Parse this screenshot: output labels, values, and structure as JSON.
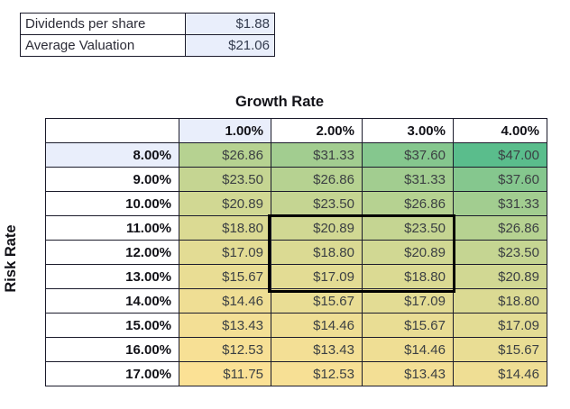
{
  "summary_table": {
    "rows": [
      {
        "label": "Dividends per share",
        "value": "$1.88"
      },
      {
        "label": "Average Valuation",
        "value": "$21.06"
      }
    ]
  },
  "sensitivity": {
    "title": "Growth Rate",
    "row_axis_label": "Risk Rate",
    "corner_label": "",
    "col_headers": [
      "1.00%",
      "2.00%",
      "3.00%",
      "4.00%"
    ],
    "highlighted_col_header": "1.00%",
    "highlighted_row_label": "8.00%",
    "selection_block": {
      "rows": [
        "11.00%",
        "12.00%",
        "13.00%"
      ],
      "cols": [
        "2.00%",
        "3.00%"
      ]
    },
    "rows": [
      {
        "label": "8.00%",
        "cells": [
          {
            "text": "$26.86",
            "color": "#b6d291"
          },
          {
            "text": "$31.33",
            "color": "#a2cd90"
          },
          {
            "text": "$37.60",
            "color": "#85c78e"
          },
          {
            "text": "$47.00",
            "color": "#5abd8c"
          }
        ]
      },
      {
        "label": "9.00%",
        "cells": [
          {
            "text": "$23.50",
            "color": "#c5d592"
          },
          {
            "text": "$26.86",
            "color": "#b6d291"
          },
          {
            "text": "$31.33",
            "color": "#a2cd90"
          },
          {
            "text": "$37.60",
            "color": "#85c78e"
          }
        ]
      },
      {
        "label": "10.00%",
        "cells": [
          {
            "text": "$20.89",
            "color": "#d1d893"
          },
          {
            "text": "$23.50",
            "color": "#c5d592"
          },
          {
            "text": "$26.86",
            "color": "#b6d291"
          },
          {
            "text": "$31.33",
            "color": "#a2cd90"
          }
        ]
      },
      {
        "label": "11.00%",
        "cells": [
          {
            "text": "$18.80",
            "color": "#dbda93"
          },
          {
            "text": "$20.89",
            "color": "#d1d893"
          },
          {
            "text": "$23.50",
            "color": "#c5d592"
          },
          {
            "text": "$26.86",
            "color": "#b6d291"
          }
        ]
      },
      {
        "label": "12.00%",
        "cells": [
          {
            "text": "$17.09",
            "color": "#e3dc94"
          },
          {
            "text": "$18.80",
            "color": "#dbda93"
          },
          {
            "text": "$20.89",
            "color": "#d1d893"
          },
          {
            "text": "$23.50",
            "color": "#c5d592"
          }
        ]
      },
      {
        "label": "13.00%",
        "cells": [
          {
            "text": "$15.67",
            "color": "#e9dd94"
          },
          {
            "text": "$17.09",
            "color": "#e3dc94"
          },
          {
            "text": "$18.80",
            "color": "#dbda93"
          },
          {
            "text": "$20.89",
            "color": "#d1d893"
          }
        ]
      },
      {
        "label": "14.00%",
        "cells": [
          {
            "text": "$14.46",
            "color": "#efde94"
          },
          {
            "text": "$15.67",
            "color": "#e9dd94"
          },
          {
            "text": "$17.09",
            "color": "#e3dc94"
          },
          {
            "text": "$18.80",
            "color": "#dbda93"
          }
        ]
      },
      {
        "label": "15.00%",
        "cells": [
          {
            "text": "$13.43",
            "color": "#f3df95"
          },
          {
            "text": "$14.46",
            "color": "#efde94"
          },
          {
            "text": "$15.67",
            "color": "#e9dd94"
          },
          {
            "text": "$17.09",
            "color": "#e3dc94"
          }
        ]
      },
      {
        "label": "16.00%",
        "cells": [
          {
            "text": "$12.53",
            "color": "#f7e095"
          },
          {
            "text": "$13.43",
            "color": "#f3df95"
          },
          {
            "text": "$14.46",
            "color": "#efde94"
          },
          {
            "text": "$15.67",
            "color": "#e9dd94"
          }
        ]
      },
      {
        "label": "17.00%",
        "cells": [
          {
            "text": "$11.75",
            "color": "#fbe195"
          },
          {
            "text": "$12.53",
            "color": "#f7e095"
          },
          {
            "text": "$13.43",
            "color": "#f3df95"
          },
          {
            "text": "$14.46",
            "color": "#efde94"
          }
        ]
      }
    ]
  },
  "colors": {
    "highlight_blue": "#e9eefb",
    "grid_border": "#1b1b2b",
    "selection_outline": "#000000",
    "scale_min": "#fbe195",
    "scale_max": "#5abd8c"
  }
}
